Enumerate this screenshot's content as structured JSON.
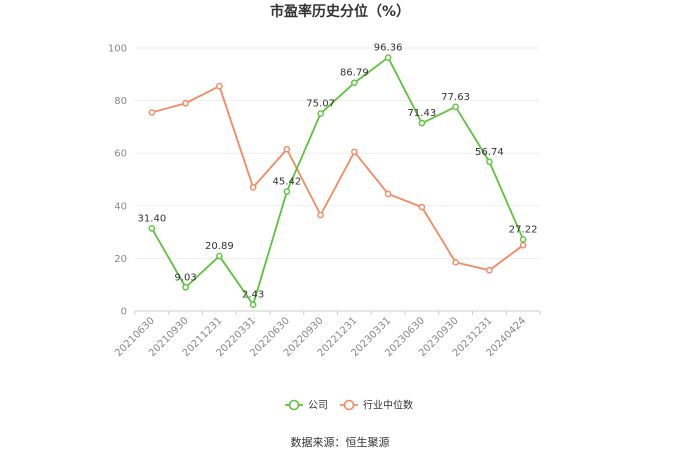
{
  "chart_data": {
    "type": "line",
    "title": "市盈率历史分位（%）",
    "categories": [
      "20210630",
      "20210930",
      "20211231",
      "20220331",
      "20220630",
      "20220930",
      "20221231",
      "20230331",
      "20230630",
      "20230930",
      "20231231",
      "20240424"
    ],
    "series": [
      {
        "name": "公司",
        "color": "#5cc33a",
        "values": [
          31.4,
          9.03,
          20.89,
          2.43,
          45.42,
          75.07,
          86.79,
          96.36,
          71.43,
          77.63,
          56.74,
          27.22
        ],
        "labels": [
          "31.40",
          "9.03",
          "20.89",
          "2.43",
          "45.42",
          "75.07",
          "86.79",
          "96.36",
          "71.43",
          "77.63",
          "56.74",
          "27.22"
        ]
      },
      {
        "name": "行业中位数",
        "color": "#f4895f",
        "values": [
          75.5,
          79,
          85.5,
          47,
          61.5,
          36.5,
          60.5,
          44.5,
          39.5,
          18.5,
          15.5,
          25
        ]
      }
    ],
    "ylim": [
      0,
      100
    ],
    "yticks": [
      "0",
      "20",
      "40",
      "60",
      "80",
      "100"
    ],
    "grid": true,
    "legend": "bottom-center",
    "source": "数据来源：恒生聚源"
  }
}
